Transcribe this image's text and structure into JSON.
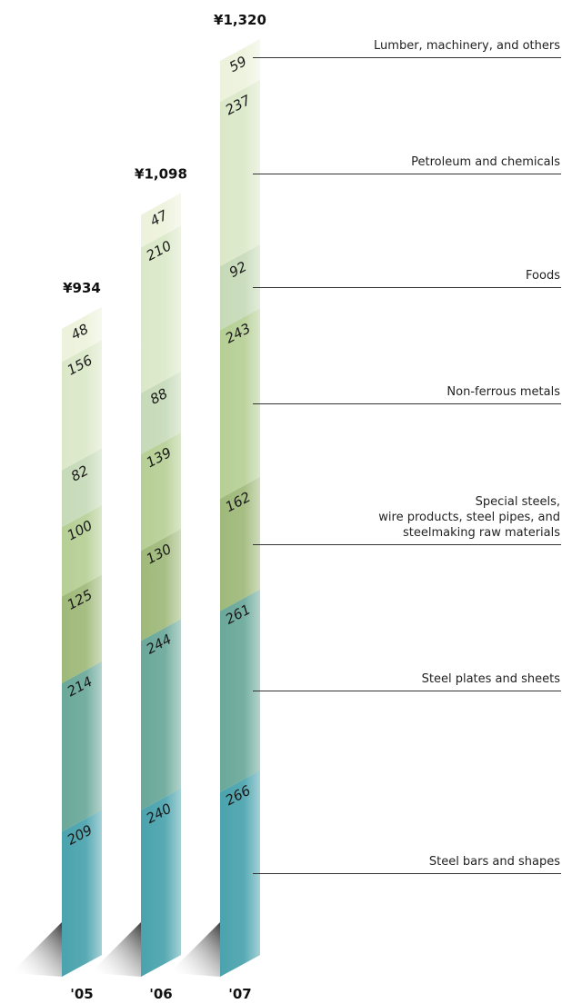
{
  "chart_data": {
    "type": "bar",
    "stacked": true,
    "categories": [
      "'05",
      "'06",
      "'07"
    ],
    "totals": [
      "¥934",
      "¥1,098",
      "¥1,320"
    ],
    "series": [
      {
        "name": "Steel bars and shapes",
        "values": [
          209,
          240,
          266
        ],
        "color": "#4aa3ad"
      },
      {
        "name": "Steel plates and sheets",
        "values": [
          214,
          244,
          261
        ],
        "color": "#6aa89a"
      },
      {
        "name": "Special steels,\nwire products, steel pipes, and\nsteelmaking raw materials",
        "values": [
          125,
          130,
          162
        ],
        "color": "#9fb97a"
      },
      {
        "name": "Non-ferrous metals",
        "values": [
          100,
          139,
          243
        ],
        "color": "#b6cf95"
      },
      {
        "name": "Foods",
        "values": [
          82,
          88,
          92
        ],
        "color": "#c6dab8"
      },
      {
        "name": "Petroleum and chemicals",
        "values": [
          156,
          210,
          237
        ],
        "color": "#dbe8c8"
      },
      {
        "name": "Lumber, machinery, and others",
        "values": [
          48,
          47,
          59
        ],
        "color": "#edf2dc"
      }
    ]
  }
}
